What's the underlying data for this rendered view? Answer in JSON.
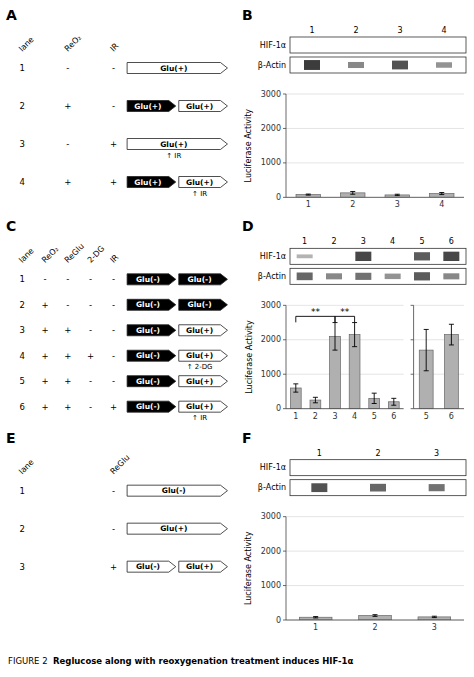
{
  "chart_data": [
    {
      "type": "table",
      "title": "A",
      "columns": [
        "lane",
        "ReO₂",
        "IR"
      ],
      "rows": [
        [
          "1",
          "-",
          "-"
        ],
        [
          "2",
          "+",
          "-"
        ],
        [
          "3",
          "-",
          "+"
        ],
        [
          "4",
          "+",
          "+"
        ]
      ],
      "arrows": [
        [
          {
            "label": "Glu(+)",
            "color": "white"
          }
        ],
        [
          {
            "label": "Glu(+)",
            "color": "black"
          },
          {
            "label": "Glu(+)",
            "color": "white"
          }
        ],
        [
          {
            "label": "Glu(+)",
            "color": "white",
            "annotation": "↑ IR"
          }
        ],
        [
          {
            "label": "Glu(+)",
            "color": "black"
          },
          {
            "label": "Glu(+)",
            "color": "white",
            "annotation": "↑ IR"
          }
        ]
      ]
    },
    {
      "type": "blot",
      "title": "B",
      "categories": [
        "1",
        "2",
        "3",
        "4"
      ],
      "series": [
        {
          "name": "HIF-1α",
          "values": [
            null,
            null,
            null,
            null
          ]
        },
        {
          "name": "β-Actin",
          "values": [
            0.9,
            0.55,
            0.8,
            0.5
          ]
        }
      ]
    },
    {
      "type": "bar",
      "categories": [
        "1",
        "2",
        "3",
        "4"
      ],
      "values": [
        80,
        130,
        70,
        110
      ],
      "errors": [
        15,
        40,
        20,
        30
      ],
      "ylim": [
        0,
        3000
      ],
      "yticks": [
        0,
        1000,
        2000,
        3000
      ],
      "y_label": "Luciferase Activity",
      "color": "#b0b0b0",
      "grid": true
    },
    {
      "type": "table",
      "title": "C",
      "columns": [
        "lane",
        "ReO₂",
        "ReGlu",
        "2-DG",
        "IR"
      ],
      "rows": [
        [
          "1",
          "-",
          "-",
          "-",
          "-"
        ],
        [
          "2",
          "+",
          "-",
          "-",
          "-"
        ],
        [
          "3",
          "+",
          "+",
          "-",
          "-"
        ],
        [
          "4",
          "+",
          "+",
          "+",
          "-"
        ],
        [
          "5",
          "+",
          "+",
          "-",
          "-"
        ],
        [
          "6",
          "+",
          "+",
          "-",
          "+"
        ]
      ],
      "arrows": [
        [
          {
            "label": "Glu(-)",
            "color": "black"
          },
          {
            "label": "Glu(-)",
            "color": "black"
          }
        ],
        [
          {
            "label": "Glu(-)",
            "color": "black"
          },
          {
            "label": "Glu(-)",
            "color": "black"
          }
        ],
        [
          {
            "label": "Glu(-)",
            "color": "black"
          },
          {
            "label": "Glu(+)",
            "color": "white"
          }
        ],
        [
          {
            "label": "Glu(-)",
            "color": "black"
          },
          {
            "label": "Glu(+)",
            "color": "white",
            "annotation": "↑ 2-DG"
          }
        ],
        [
          {
            "label": "Glu(-)",
            "color": "black"
          },
          {
            "label": "Glu(+)",
            "color": "white"
          }
        ],
        [
          {
            "label": "Glu(-)",
            "color": "black"
          },
          {
            "label": "Glu(+)",
            "color": "white",
            "annotation": "↑ IR"
          }
        ]
      ]
    },
    {
      "type": "blot",
      "title": "D",
      "categories": [
        "1",
        "2",
        "3",
        "4",
        "5",
        "6"
      ],
      "series": [
        {
          "name": "HIF-1α",
          "values": [
            0.35,
            0.0,
            0.85,
            0.0,
            0.75,
            0.85
          ]
        },
        {
          "name": "β-Actin",
          "values": [
            0.7,
            0.55,
            0.65,
            0.5,
            0.75,
            0.55
          ]
        }
      ]
    },
    {
      "type": "bar",
      "categories": [
        "1",
        "2",
        "3",
        "4",
        "5",
        "6"
      ],
      "values": [
        600,
        250,
        2100,
        2150,
        300,
        200
      ],
      "errors": [
        120,
        80,
        400,
        350,
        150,
        100
      ],
      "ylim": [
        0,
        3000
      ],
      "yticks": [
        0,
        1000,
        2000,
        3000
      ],
      "y_label": "Luciferase Activity",
      "color": "#b0b0b0",
      "grid": true,
      "annotations": [
        {
          "text": "**",
          "x": [
            "1",
            "3"
          ],
          "y": 2680
        },
        {
          "text": "**",
          "x": [
            "3",
            "4"
          ],
          "y": 2680
        }
      ]
    },
    {
      "type": "bar",
      "categories": [
        "5",
        "6"
      ],
      "values": [
        1700,
        2150
      ],
      "errors": [
        600,
        300
      ],
      "ylim": [
        0,
        3000
      ],
      "yticks": [
        0,
        1000,
        2000,
        3000
      ],
      "color": "#b0b0b0",
      "grid": true,
      "tick_labels": "x"
    },
    {
      "type": "table",
      "title": "E",
      "columns": [
        "lane",
        "ReGlu"
      ],
      "rows": [
        [
          "1",
          "-"
        ],
        [
          "2",
          "-"
        ],
        [
          "3",
          "+"
        ]
      ],
      "arrows": [
        [
          {
            "label": "Glu(-)",
            "color": "white"
          }
        ],
        [
          {
            "label": "Glu(+)",
            "color": "white"
          }
        ],
        [
          {
            "label": "Glu(-)",
            "color": "white"
          },
          {
            "label": "Glu(+)",
            "color": "white"
          }
        ]
      ]
    },
    {
      "type": "blot",
      "title": "F",
      "categories": [
        "1",
        "2",
        "3"
      ],
      "series": [
        {
          "name": "HIF-1α",
          "values": [
            null,
            null,
            null
          ]
        },
        {
          "name": "β-Actin",
          "values": [
            0.8,
            0.7,
            0.65
          ]
        }
      ]
    },
    {
      "type": "bar",
      "categories": [
        "1",
        "2",
        "3"
      ],
      "values": [
        80,
        130,
        90
      ],
      "errors": [
        20,
        25,
        20
      ],
      "ylim": [
        0,
        3000
      ],
      "yticks": [
        0,
        1000,
        2000,
        3000
      ],
      "y_label": "Luciferase Activity",
      "color": "#b0b0b0",
      "grid": true
    }
  ],
  "caption": {
    "text": "FIGURE 2  ",
    "bold": "Reglucose along with reoxygenation treatment induces HIF-1α"
  }
}
